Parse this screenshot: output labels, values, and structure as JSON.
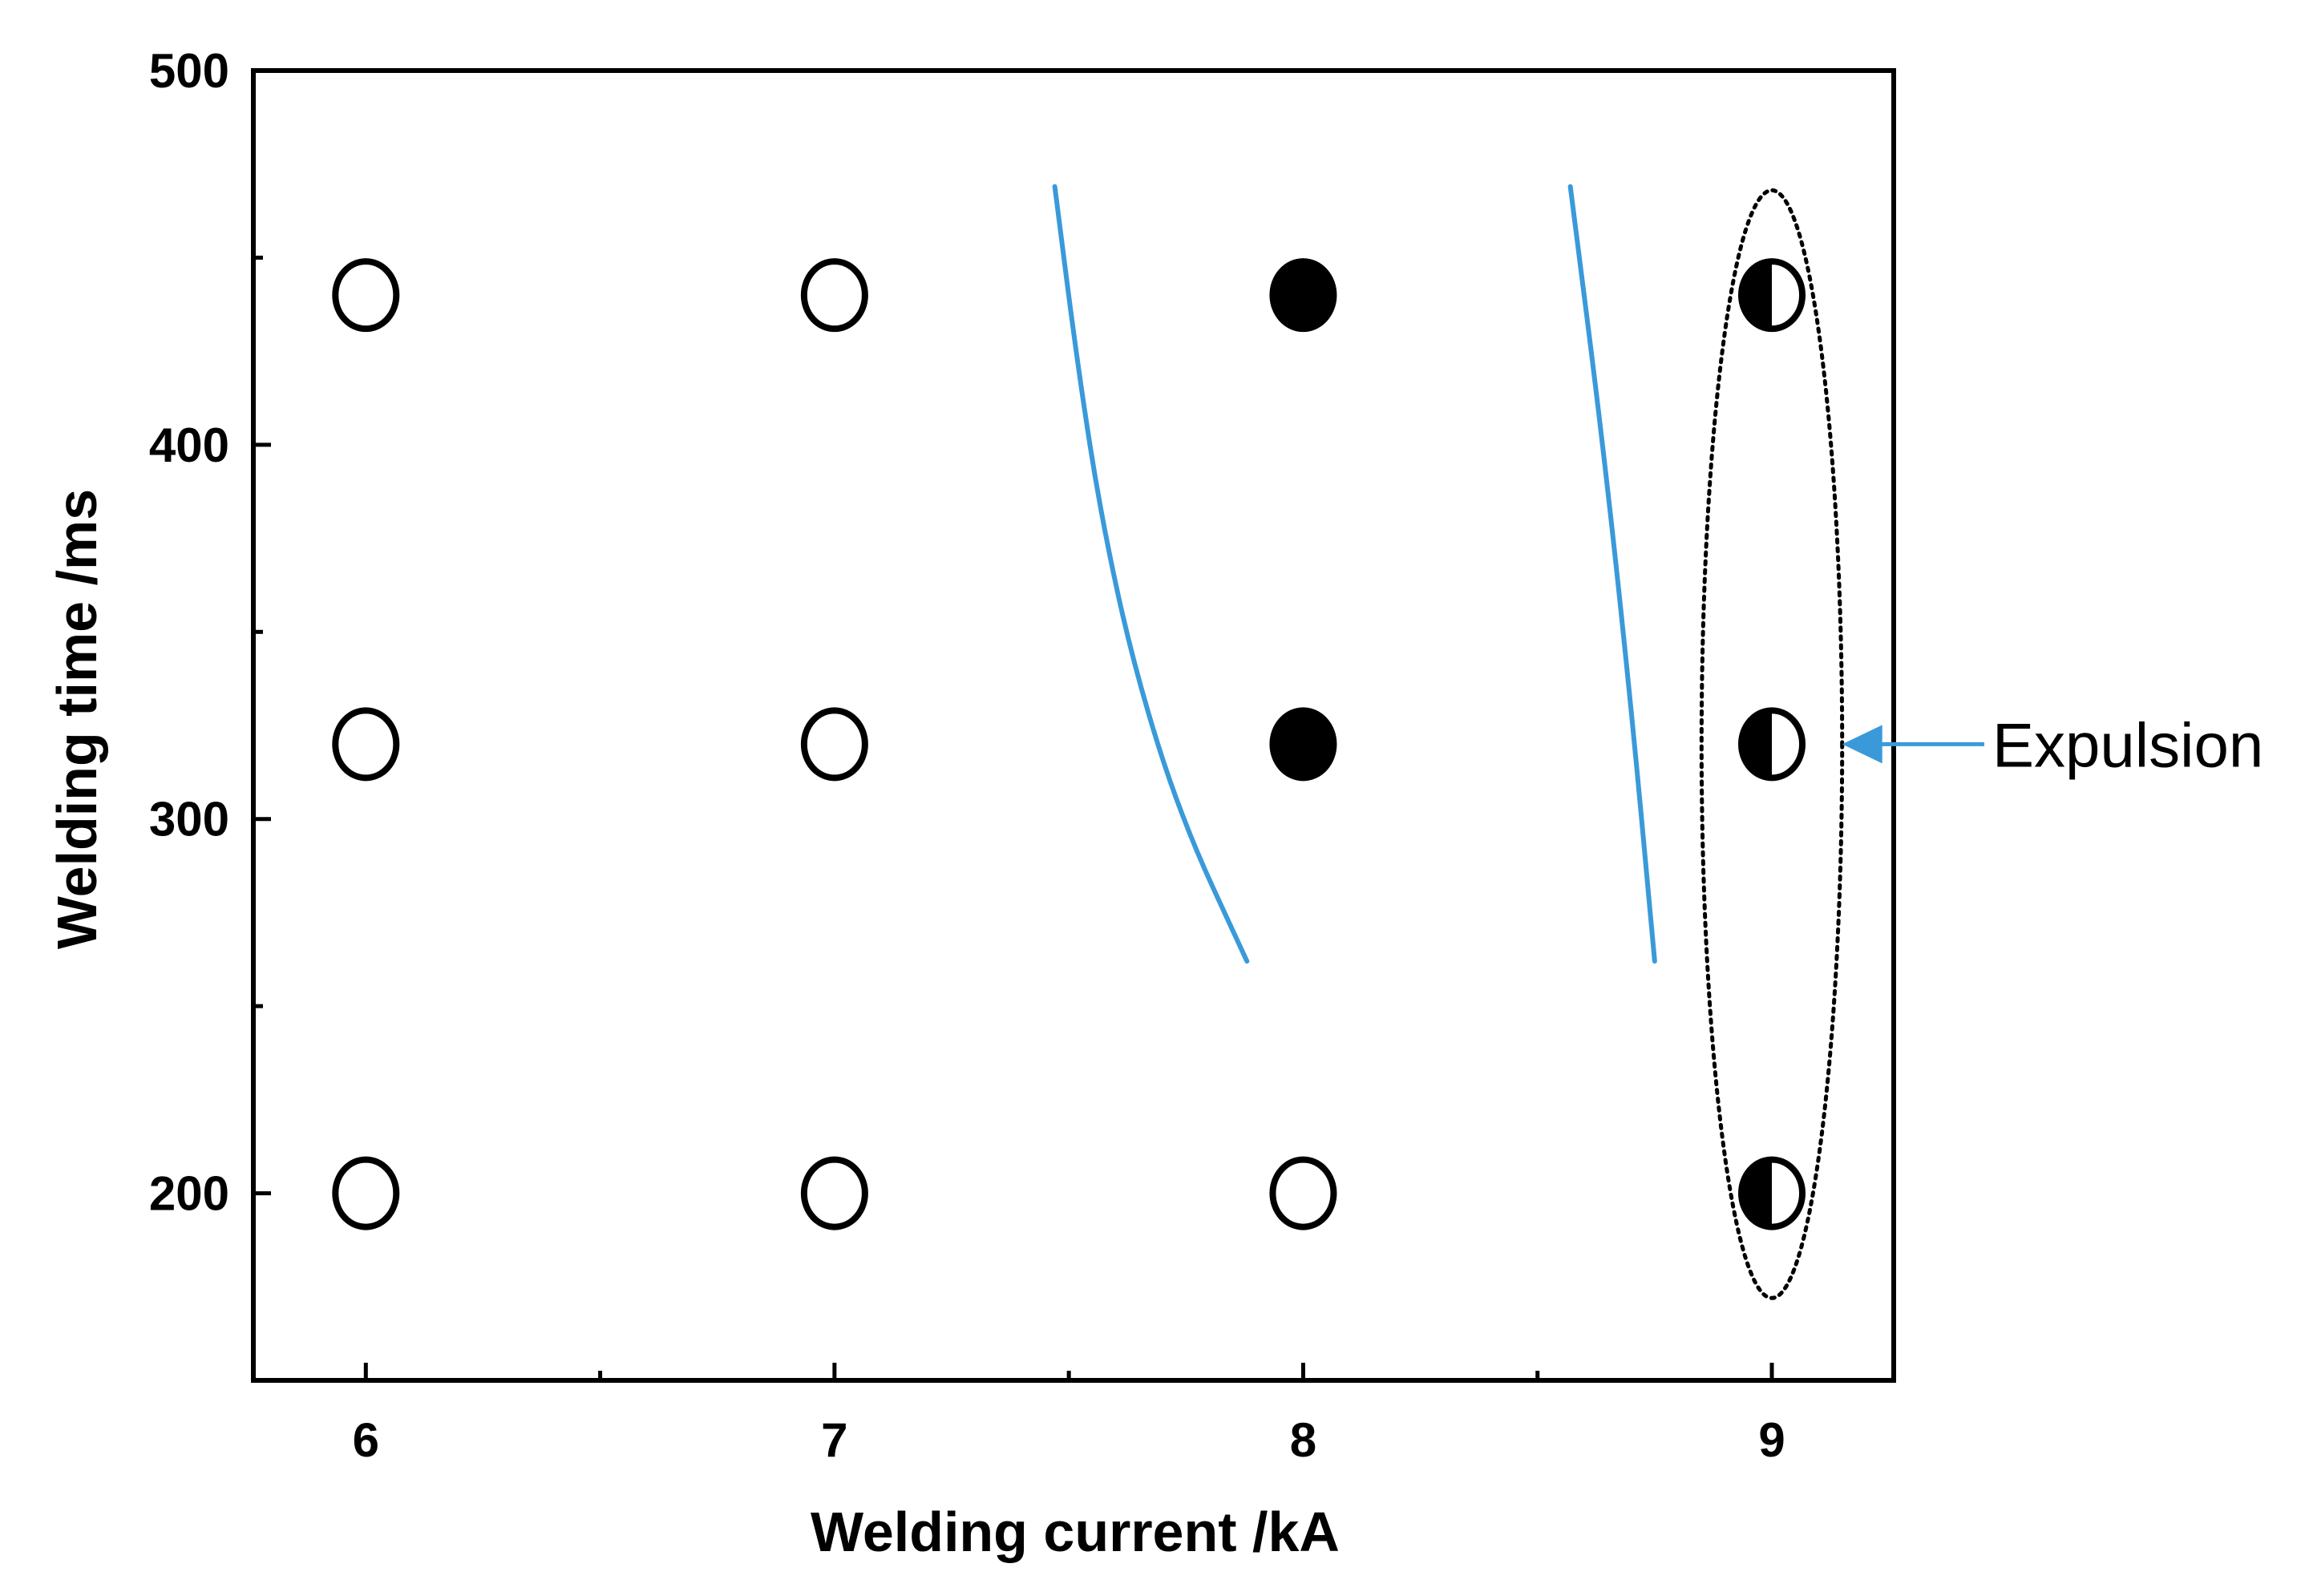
{
  "chart_data": {
    "type": "scatter",
    "xlabel": "Welding current /kA",
    "ylabel": "Welding time /ms",
    "xlim": [
      5.76,
      9.26
    ],
    "ylim": [
      150,
      500
    ],
    "xticks": [
      6,
      7,
      8,
      9
    ],
    "xticks_minor": [
      6.5,
      7.5,
      8.5
    ],
    "yticks": [
      200,
      300,
      400,
      500
    ],
    "yticks_minor": [
      250,
      350,
      450
    ],
    "grid": false,
    "points": [
      {
        "x": 6,
        "y": 440,
        "style": "open"
      },
      {
        "x": 7,
        "y": 440,
        "style": "open"
      },
      {
        "x": 8,
        "y": 440,
        "style": "filled"
      },
      {
        "x": 9,
        "y": 440,
        "style": "half"
      },
      {
        "x": 6,
        "y": 320,
        "style": "open"
      },
      {
        "x": 7,
        "y": 320,
        "style": "open"
      },
      {
        "x": 8,
        "y": 320,
        "style": "filled"
      },
      {
        "x": 9,
        "y": 320,
        "style": "half"
      },
      {
        "x": 6,
        "y": 200,
        "style": "open"
      },
      {
        "x": 7,
        "y": 200,
        "style": "open"
      },
      {
        "x": 8,
        "y": 200,
        "style": "open"
      },
      {
        "x": 9,
        "y": 200,
        "style": "half"
      }
    ],
    "boundaries": [
      {
        "color": "#3a9ad9",
        "points": [
          [
            7.47,
            469
          ],
          [
            7.52,
            420
          ],
          [
            7.57,
            380
          ],
          [
            7.64,
            340
          ],
          [
            7.74,
            300
          ],
          [
            7.88,
            262
          ]
        ]
      },
      {
        "color": "#3a9ad9",
        "points": [
          [
            8.57,
            469
          ],
          [
            8.64,
            400
          ],
          [
            8.7,
            330
          ],
          [
            8.75,
            262
          ]
        ]
      }
    ],
    "highlight_ellipse": {
      "cx": 9,
      "cy": 320,
      "rx": 0.15,
      "ry": 148,
      "style": "dotted"
    },
    "annotation": {
      "text": "Expulsion",
      "color": "#3a9ad9",
      "target": [
        9.15,
        320
      ]
    }
  }
}
